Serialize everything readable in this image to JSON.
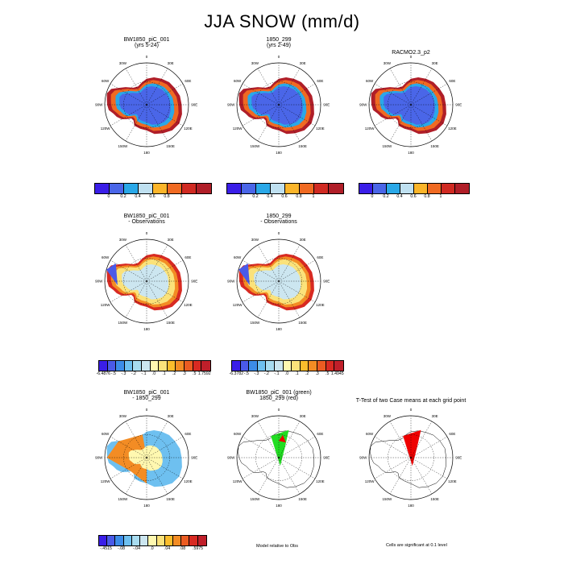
{
  "title": "JJA SNOW (mm/d)",
  "lon_labels": [
    "0",
    "30E",
    "60E",
    "90E",
    "120E",
    "150E",
    "180",
    "150W",
    "120W",
    "90W",
    "60W",
    "30W"
  ],
  "colors": {
    "abs": [
      "#3a1ee8",
      "#4a66e8",
      "#2aa8e8",
      "#bfe0f0",
      "#fbb52a",
      "#f06a22",
      "#d02a22",
      "#b01e28"
    ],
    "diff": [
      "#3a1ee8",
      "#4a5ae8",
      "#3c8ce8",
      "#6ec0f0",
      "#a8dcf0",
      "#cce6f0",
      "#fff8b0",
      "#fbe27a",
      "#fbbd2c",
      "#f38c24",
      "#eb5c22",
      "#d82a22",
      "#c01f2a"
    ],
    "green": "#22dd22",
    "red": "#ee0000"
  },
  "chart_data": [
    {
      "type": "heatmap",
      "title": [
        "BW1850_piC_001",
        "(yrs 5-24)"
      ],
      "colorbar": {
        "ticks": [
          "0",
          "0.2",
          "0.4",
          "0.6",
          "0.8",
          "1"
        ]
      }
    },
    {
      "type": "heatmap",
      "title": [
        "1850_299",
        "(yrs 2-49)"
      ],
      "colorbar": {
        "ticks": [
          "0",
          "0.2",
          "0.4",
          "0.6",
          "0.8",
          "1"
        ]
      }
    },
    {
      "type": "heatmap",
      "title": [
        "RACMO2.3_p2"
      ],
      "colorbar": {
        "ticks": [
          "0",
          "0.2",
          "0.4",
          "0.6",
          "0.8",
          "1"
        ]
      }
    },
    {
      "type": "heatmap",
      "title": [
        "BW1850_piC_001",
        "- Observations"
      ],
      "colorbar": {
        "ticks": [
          "-6.4876",
          "-.5",
          "-.3",
          "-.2",
          "-.1",
          ".0",
          ".1",
          ".2",
          ".3",
          ".5",
          "1.7592"
        ]
      }
    },
    {
      "type": "heatmap",
      "title": [
        "1850_299",
        "- Observations"
      ],
      "colorbar": {
        "ticks": [
          "-6.3782",
          "-.5",
          "-.3",
          "-.2",
          "-.1",
          ".0",
          ".1",
          ".2",
          ".3",
          ".5",
          "1.4945"
        ]
      }
    },
    {
      "type": "heatmap",
      "title": [
        "BW1850_piC_001",
        "- 1850_299"
      ],
      "colorbar": {
        "ticks": [
          "-.4515",
          "-.08",
          "-.04",
          ".0",
          ".04",
          ".08",
          ".5975"
        ]
      }
    },
    {
      "type": "heatmap",
      "title": [
        "BW1850_piC_001 (green)",
        "1850_299 (red)"
      ],
      "note": "Model relative to Obs"
    },
    {
      "type": "heatmap",
      "title": [
        "T-Test of two Case means at each grid point"
      ],
      "note": "Cells are significant at 0.1 level"
    }
  ]
}
